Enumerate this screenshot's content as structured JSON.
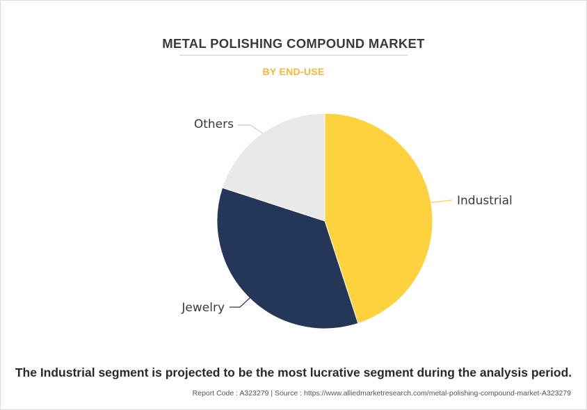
{
  "header": {
    "title": "METAL POLISHING COMPOUND MARKET",
    "subtitle": "BY END-USE"
  },
  "chart_data": {
    "type": "pie",
    "title": "METAL POLISHING COMPOUND MARKET",
    "subtitle": "BY END-USE",
    "categories": [
      "Industrial",
      "Jewelry",
      "Others"
    ],
    "values": [
      45,
      35,
      20
    ],
    "colors": [
      "#fed23e",
      "#253759",
      "#e9e9e9"
    ],
    "start_angle": "top",
    "direction": "clockwise"
  },
  "footer": {
    "caption": "The Industrial segment is projected to be the most lucrative segment during the analysis period.",
    "report": "Report Code : A323279  |  Source : https://www.alliedmarketresearch.com/metal-polishing-compound-market-A323279"
  }
}
